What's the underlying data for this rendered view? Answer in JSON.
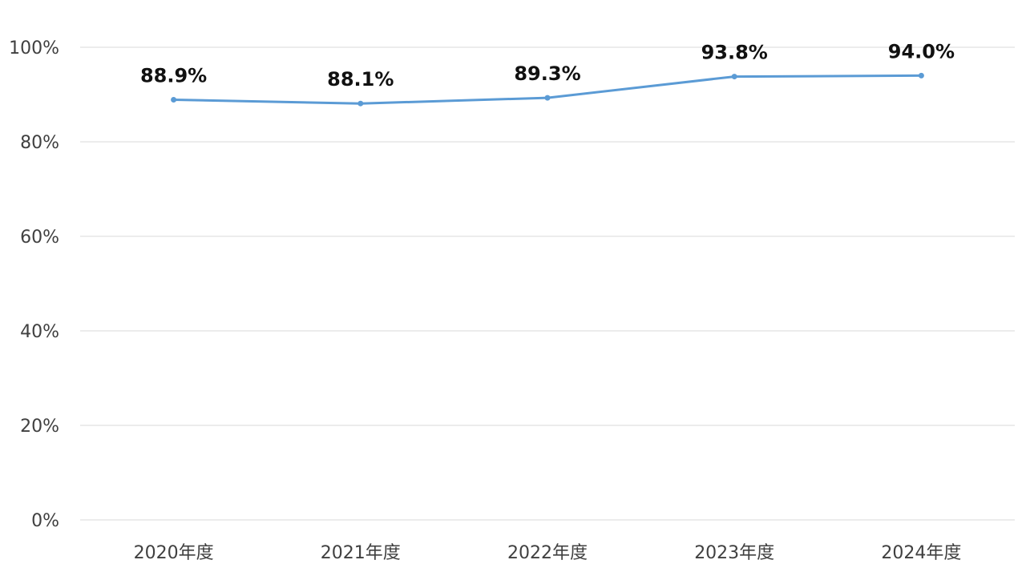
{
  "chart_data": {
    "type": "line",
    "categories": [
      "2020年度",
      "2021年度",
      "2022年度",
      "2023年度",
      "2024年度"
    ],
    "series": [
      {
        "values": [
          88.9,
          88.1,
          89.3,
          93.8,
          94.0
        ],
        "labels": [
          "88.9%",
          "88.1%",
          "89.3%",
          "93.8%",
          "94.0%"
        ],
        "color": "#5b9bd5"
      }
    ],
    "y_ticks": [
      {
        "value": 0,
        "label": "0%"
      },
      {
        "value": 20,
        "label": "20%"
      },
      {
        "value": 40,
        "label": "40%"
      },
      {
        "value": 60,
        "label": "60%"
      },
      {
        "value": 80,
        "label": "80%"
      },
      {
        "value": 100,
        "label": "100%"
      }
    ],
    "ylim": [
      0,
      100
    ],
    "grid": true,
    "gridline_color": "#d9d9d9",
    "legend": "none"
  }
}
